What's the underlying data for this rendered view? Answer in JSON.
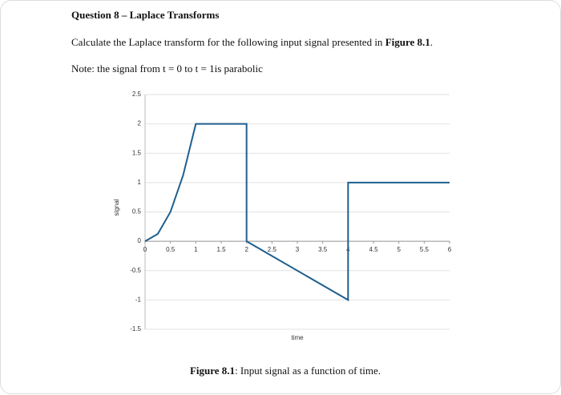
{
  "header": {
    "title": "Question 8 – Laplace Transforms"
  },
  "instruction": [
    "Calculate the Laplace transform for the following input signal presented in ",
    "Figure 8.1",
    "."
  ],
  "note": "Note: the signal from t = 0 to t = 1is parabolic",
  "caption": [
    "Figure 8.1",
    ": Input signal as a function of time."
  ],
  "chart_data": {
    "type": "line",
    "xlabel": "time",
    "ylabel": "signal",
    "x": [
      0,
      0.25,
      0.5,
      0.75,
      1,
      2,
      2,
      4,
      4,
      6
    ],
    "series": [
      {
        "color": "#1f5f8f",
        "values": [
          0,
          0.125,
          0.5,
          1.125,
          2,
          2,
          0,
          -1,
          1,
          1
        ]
      }
    ],
    "xlim": [
      0,
      6
    ],
    "xticks": [
      0,
      0.5,
      1,
      1.5,
      2,
      2.5,
      3,
      3.5,
      4,
      4.5,
      5,
      5.5,
      6
    ],
    "ylim": [
      -1.5,
      2.5
    ],
    "yticks": [
      2.5,
      2,
      1.5,
      1,
      0.5,
      0,
      -0.5,
      -1,
      -1.5
    ],
    "grid": true
  }
}
